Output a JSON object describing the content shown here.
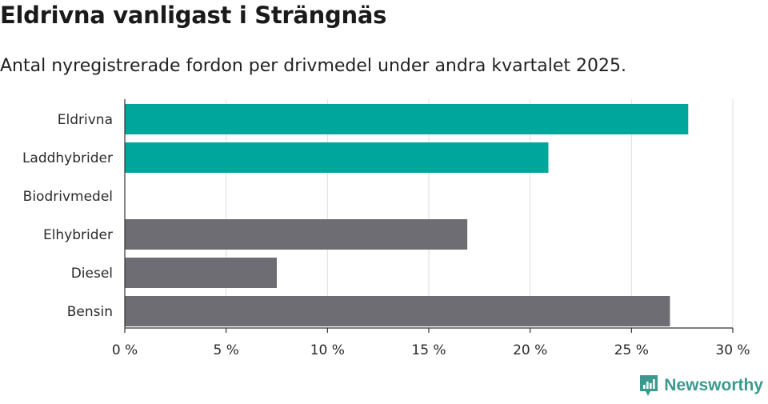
{
  "header": {
    "title": "Eldrivna vanligast i Strängnäs",
    "subtitle": "Antal nyregistrerade fordon per drivmedel under andra kvartalet 2025."
  },
  "brand": {
    "name": "Newsworthy",
    "icon": "newsworthy-logo-icon"
  },
  "colors": {
    "highlight": "#00a59b",
    "default": "#6e6d73",
    "grid": "#dddddd",
    "axis": "#333333"
  },
  "chart_data": {
    "type": "bar",
    "orientation": "horizontal",
    "categories": [
      "Eldrivna",
      "Laddhybrider",
      "Biodrivmedel",
      "Elhybrider",
      "Diesel",
      "Bensin"
    ],
    "values": [
      27.8,
      20.9,
      0,
      16.9,
      7.5,
      26.9
    ],
    "bar_colors": [
      "#00a59b",
      "#00a59b",
      "#6e6d73",
      "#6e6d73",
      "#6e6d73",
      "#6e6d73"
    ],
    "xlim": [
      0,
      30
    ],
    "xticks": [
      0,
      5,
      10,
      15,
      20,
      25,
      30
    ],
    "tick_labels": [
      "0 %",
      "5 %",
      "10 %",
      "15 %",
      "20 %",
      "25 %",
      "30 %"
    ],
    "grid": true,
    "unit": "%"
  }
}
